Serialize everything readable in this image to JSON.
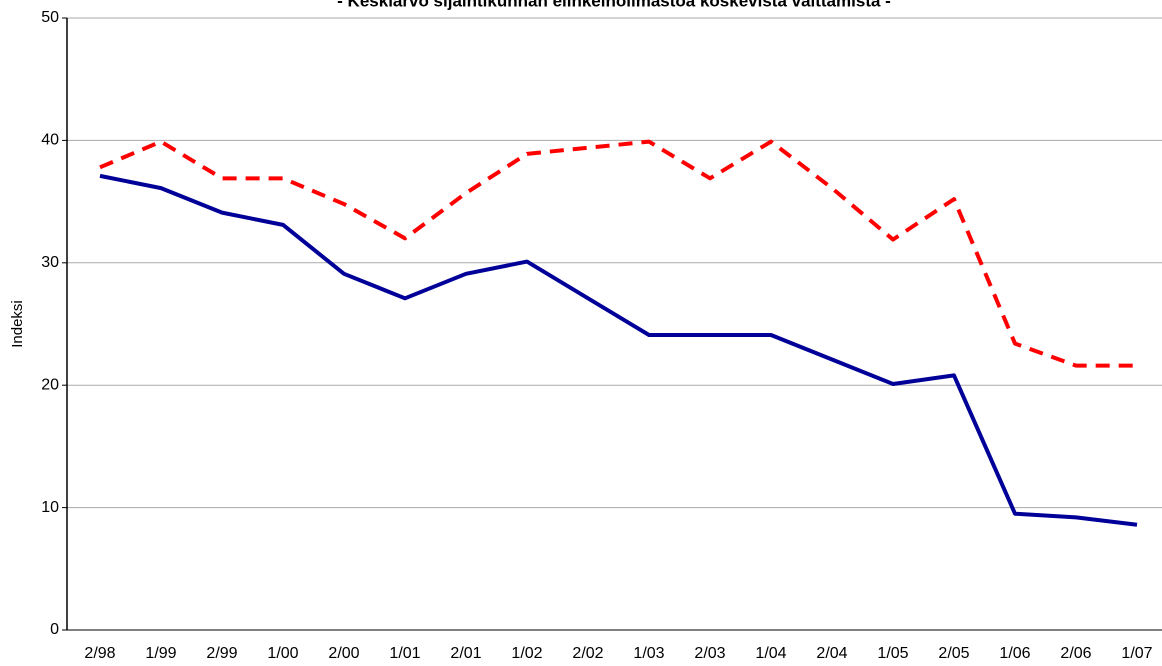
{
  "chart_data": {
    "type": "line",
    "title": "- Keskiarvo sijaintikunnan elinkeinoilmastoa koskevista väittämistä -",
    "y_label": "Indeksi",
    "categories": [
      "2/98",
      "1/99",
      "2/99",
      "1/00",
      "2/00",
      "1/01",
      "2/01",
      "1/02",
      "2/02",
      "1/03",
      "2/03",
      "1/04",
      "2/04",
      "1/05",
      "2/05",
      "1/06",
      "2/06",
      "1/07"
    ],
    "series": [
      {
        "color": "#000099",
        "line_style": "solid",
        "values": [
          37.1,
          36.1,
          34.1,
          33.1,
          29.1,
          27.1,
          29.1,
          30.1,
          27.1,
          24.1,
          24.1,
          24.1,
          22.1,
          20.1,
          20.8,
          9.5,
          9.2,
          8.6
        ]
      },
      {
        "color": "#ff0000",
        "line_style": "dashed",
        "values": [
          37.8,
          39.9,
          36.9,
          36.9,
          34.8,
          32.0,
          35.7,
          38.9,
          39.4,
          39.9,
          36.9,
          39.9,
          36.1,
          31.9,
          35.2,
          23.4,
          21.6,
          21.6
        ]
      }
    ],
    "ylim": [
      0,
      50
    ],
    "yticks": [
      0,
      10,
      20,
      30,
      40,
      50
    ],
    "grid": true
  }
}
